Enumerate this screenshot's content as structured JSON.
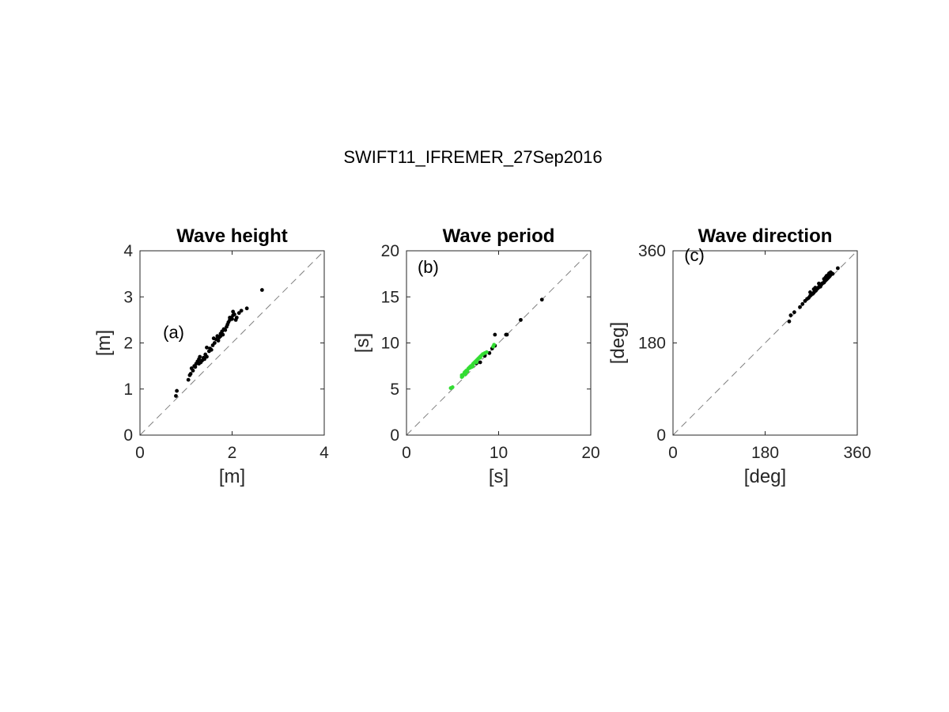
{
  "figure": {
    "suptitle": "SWIFT11_IFREMER_27Sep2016"
  },
  "chart_data": [
    {
      "type": "scatter",
      "title": "Wave height",
      "xlabel": "[m]",
      "ylabel": "[m]",
      "xlim": [
        0,
        4
      ],
      "ylim": [
        0,
        4
      ],
      "xticks": [
        0,
        2,
        4
      ],
      "yticks": [
        0,
        1,
        2,
        3,
        4
      ],
      "annotation": {
        "text": "(a)",
        "x": 0.5,
        "y": 2.1
      },
      "reference_line": "y = x (dashed)",
      "colors": {
        "points": "#000000",
        "diagonal": "#808080"
      },
      "series": [
        {
          "color": "#000000",
          "points": [
            [
              0.78,
              0.85
            ],
            [
              0.8,
              0.96
            ],
            [
              1.05,
              1.2
            ],
            [
              1.08,
              1.3
            ],
            [
              1.1,
              1.33
            ],
            [
              1.12,
              1.45
            ],
            [
              1.15,
              1.4
            ],
            [
              1.18,
              1.5
            ],
            [
              1.2,
              1.48
            ],
            [
              1.22,
              1.55
            ],
            [
              1.25,
              1.6
            ],
            [
              1.28,
              1.65
            ],
            [
              1.28,
              1.55
            ],
            [
              1.3,
              1.7
            ],
            [
              1.32,
              1.58
            ],
            [
              1.35,
              1.62
            ],
            [
              1.38,
              1.68
            ],
            [
              1.4,
              1.65
            ],
            [
              1.42,
              1.75
            ],
            [
              1.45,
              1.7
            ],
            [
              1.5,
              1.82
            ],
            [
              1.52,
              1.88
            ],
            [
              1.55,
              1.85
            ],
            [
              1.58,
              1.95
            ],
            [
              1.6,
              2.1
            ],
            [
              1.62,
              2.0
            ],
            [
              1.65,
              2.08
            ],
            [
              1.7,
              2.05
            ],
            [
              1.72,
              2.12
            ],
            [
              1.75,
              2.2
            ],
            [
              1.78,
              2.25
            ],
            [
              1.8,
              2.18
            ],
            [
              1.82,
              2.3
            ],
            [
              1.85,
              2.28
            ],
            [
              1.88,
              2.35
            ],
            [
              1.9,
              2.4
            ],
            [
              1.92,
              2.45
            ],
            [
              1.95,
              2.5
            ],
            [
              1.98,
              2.55
            ],
            [
              2.0,
              2.52
            ],
            [
              2.02,
              2.6
            ],
            [
              2.05,
              2.62
            ],
            [
              2.08,
              2.5
            ],
            [
              2.1,
              2.55
            ],
            [
              2.15,
              2.65
            ],
            [
              2.2,
              2.7
            ],
            [
              2.32,
              2.75
            ],
            [
              2.65,
              3.15
            ],
            [
              1.75,
              2.15
            ],
            [
              1.95,
              2.55
            ],
            [
              2.02,
              2.68
            ],
            [
              1.45,
              1.9
            ],
            [
              1.68,
              2.15
            ]
          ]
        }
      ]
    },
    {
      "type": "scatter",
      "title": "Wave period",
      "xlabel": "[s]",
      "ylabel": "[s]",
      "xlim": [
        0,
        20
      ],
      "ylim": [
        0,
        20
      ],
      "xticks": [
        0,
        10,
        20
      ],
      "yticks": [
        0,
        5,
        10,
        15,
        20
      ],
      "annotation": {
        "text": "(b)",
        "x": 1.2,
        "y": 17.6
      },
      "reference_line": "y = x (dashed)",
      "colors": {
        "black_points": "#000000",
        "green_points": "#33dd33",
        "diagonal": "#808080"
      },
      "series": [
        {
          "color": "#000000",
          "points": [
            [
              9.6,
              10.9
            ],
            [
              10.8,
              10.9
            ],
            [
              10.9,
              10.9
            ],
            [
              12.4,
              12.5
            ],
            [
              14.7,
              14.7
            ],
            [
              9.6,
              9.7
            ],
            [
              9.0,
              8.9
            ],
            [
              8.0,
              7.9
            ],
            [
              7.6,
              7.8
            ],
            [
              8.5,
              8.6
            ],
            [
              9.3,
              9.4
            ],
            [
              9.5,
              9.7
            ]
          ]
        },
        {
          "color": "#33dd33",
          "points": [
            [
              4.8,
              5.1
            ],
            [
              5.0,
              5.2
            ],
            [
              6.0,
              6.5
            ],
            [
              6.0,
              6.3
            ],
            [
              6.2,
              6.6
            ],
            [
              6.3,
              6.8
            ],
            [
              6.4,
              6.9
            ],
            [
              6.5,
              7.0
            ],
            [
              6.6,
              6.9
            ],
            [
              6.7,
              7.2
            ],
            [
              6.8,
              7.3
            ],
            [
              6.9,
              7.4
            ],
            [
              7.0,
              7.5
            ],
            [
              7.1,
              7.4
            ],
            [
              7.2,
              7.7
            ],
            [
              7.3,
              7.8
            ],
            [
              7.4,
              7.9
            ],
            [
              7.5,
              8.0
            ],
            [
              7.6,
              8.1
            ],
            [
              7.7,
              8.2
            ],
            [
              7.8,
              8.3
            ],
            [
              7.9,
              8.4
            ],
            [
              8.0,
              8.5
            ],
            [
              8.1,
              8.6
            ],
            [
              8.2,
              8.7
            ],
            [
              8.3,
              8.8
            ],
            [
              8.5,
              8.9
            ],
            [
              8.7,
              9.0
            ],
            [
              6.1,
              6.4
            ],
            [
              6.9,
              7.3
            ],
            [
              7.2,
              7.5
            ],
            [
              8.0,
              8.4
            ],
            [
              9.4,
              9.6
            ],
            [
              9.5,
              9.8
            ],
            [
              6.4,
              6.6
            ],
            [
              7.6,
              7.9
            ]
          ]
        }
      ]
    },
    {
      "type": "scatter",
      "title": "Wave direction",
      "xlabel": "[deg]",
      "ylabel": "[deg]",
      "xlim": [
        0,
        360
      ],
      "ylim": [
        0,
        360
      ],
      "xticks": [
        0,
        180,
        360
      ],
      "yticks": [
        0,
        180,
        360
      ],
      "annotation": {
        "text": "(c)",
        "x": 22,
        "y": 340
      },
      "reference_line": "y = x (dashed)",
      "colors": {
        "points": "#000000",
        "diagonal": "#808080"
      },
      "series": [
        {
          "color": "#000000",
          "points": [
            [
              227,
              222
            ],
            [
              230,
              234
            ],
            [
              237,
              240
            ],
            [
              248,
              250
            ],
            [
              253,
              256
            ],
            [
              258,
              262
            ],
            [
              262,
              266
            ],
            [
              265,
              268
            ],
            [
              268,
              272
            ],
            [
              270,
              274
            ],
            [
              273,
              276
            ],
            [
              275,
              278
            ],
            [
              277,
              281
            ],
            [
              279,
              282
            ],
            [
              280,
              284
            ],
            [
              282,
              286
            ],
            [
              284,
              288
            ],
            [
              285,
              289
            ],
            [
              287,
              291
            ],
            [
              288,
              290
            ],
            [
              290,
              294
            ],
            [
              291,
              296
            ],
            [
              293,
              297
            ],
            [
              295,
              298
            ],
            [
              296,
              300
            ],
            [
              298,
              302
            ],
            [
              300,
              304
            ],
            [
              301,
              305
            ],
            [
              303,
              307
            ],
            [
              304,
              308
            ],
            [
              306,
              310
            ],
            [
              307,
              312
            ],
            [
              308,
              313
            ],
            [
              310,
              316
            ],
            [
              312,
              315
            ],
            [
              322,
              326
            ],
            [
              300,
              311
            ],
            [
              305,
              316
            ],
            [
              295,
              305
            ],
            [
              285,
              296
            ],
            [
              275,
              285
            ],
            [
              268,
              279
            ],
            [
              298,
              308
            ],
            [
              302,
              312
            ],
            [
              308,
              318
            ],
            [
              278,
              288
            ]
          ]
        }
      ]
    }
  ]
}
